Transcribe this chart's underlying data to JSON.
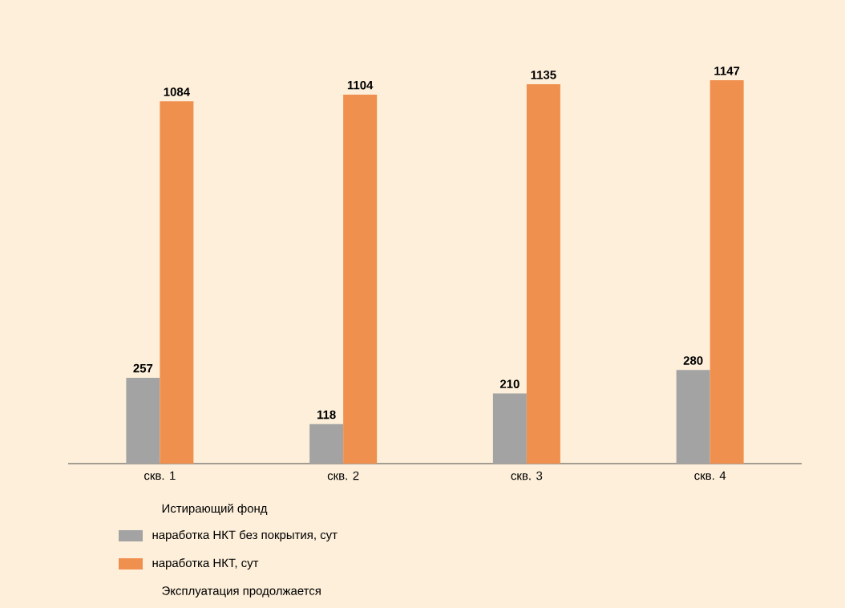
{
  "chart_data": {
    "type": "bar",
    "categories": [
      "скв. 1",
      "скв. 2",
      "скв. 3",
      "скв. 4"
    ],
    "series": [
      {
        "name": "наработка НКТ без покрытия, сут",
        "color": "#a3a3a3",
        "values": [
          257,
          118,
          210,
          280
        ]
      },
      {
        "name": "наработка НКТ, сут",
        "color": "#f0904f",
        "values": [
          1084,
          1104,
          1135,
          1147
        ]
      }
    ],
    "data_labels": true,
    "legend": "bottom",
    "legend_title": "Истирающий фонд",
    "annotations": [
      "Эксплуатация продолжается"
    ]
  }
}
